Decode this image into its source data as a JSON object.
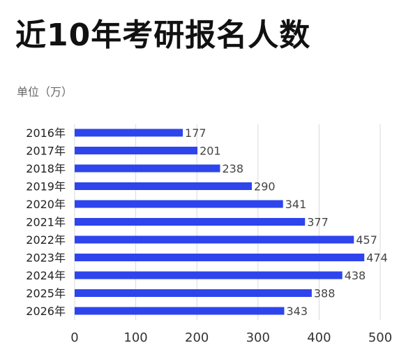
{
  "title": "近10年考研报名人数",
  "unit_label": "单位（万）",
  "chart_data": {
    "type": "bar",
    "orientation": "horizontal",
    "title": "近10年考研报名人数",
    "unit": "单位（万）",
    "categories": [
      "2016年",
      "2017年",
      "2018年",
      "2019年",
      "2020年",
      "2021年",
      "2022年",
      "2023年",
      "2024年",
      "2025年",
      "2026年"
    ],
    "values": [
      177,
      201,
      238,
      290,
      341,
      377,
      457,
      474,
      438,
      388,
      343
    ],
    "xlim": [
      0,
      500
    ],
    "xticks": [
      0,
      100,
      200,
      300,
      400,
      500
    ],
    "grid": "vertical",
    "bar_color": "#2e44ec",
    "data_labels": true
  }
}
